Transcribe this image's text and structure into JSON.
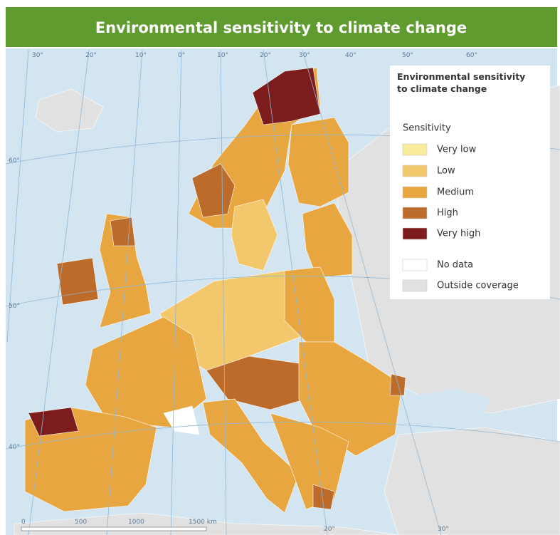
{
  "header": {
    "title": "Environmental sensitivity to climate change"
  },
  "legend": {
    "title": "Environmental sensitivity to climate change",
    "subtitle": "Sensitivity",
    "items": [
      {
        "label": "Very low",
        "color": "#f8ec9c"
      },
      {
        "label": "Low",
        "color": "#f3c86c"
      },
      {
        "label": "Medium",
        "color": "#e7a63f"
      },
      {
        "label": "High",
        "color": "#bd6b2b"
      },
      {
        "label": "Very high",
        "color": "#7c1c1c"
      },
      {
        "label": "No data",
        "color": "#ffffff"
      },
      {
        "label": "Outside coverage",
        "color": "#e1e1e1"
      }
    ]
  },
  "graticule": {
    "top": [
      "30°",
      "20°",
      "10°",
      "0°",
      "10°",
      "20°",
      "30°",
      "40°",
      "50°",
      "60°"
    ],
    "left": [
      "60°",
      "50°",
      "40°"
    ],
    "bottom": [
      "20°",
      "30°"
    ]
  },
  "scale_bar": [
    "0",
    "500",
    "1000",
    "1500 km"
  ]
}
